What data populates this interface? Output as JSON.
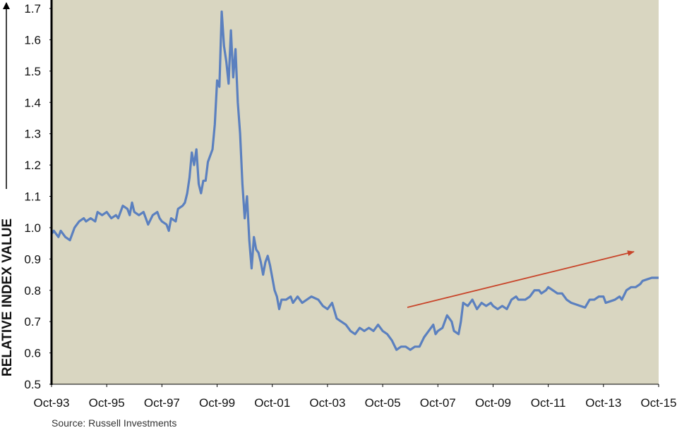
{
  "chart_data": {
    "type": "line",
    "y_label": "RELATIVE INDEX VALUE",
    "source": "Source: Russell Investments",
    "color": "#5b80bf",
    "background": "#d9d6c1",
    "xlim": [
      "Oct-93",
      "Oct-15"
    ],
    "xticks": [
      "Oct-93",
      "Oct-95",
      "Oct-97",
      "Oct-99",
      "Oct-01",
      "Oct-03",
      "Oct-05",
      "Oct-07",
      "Oct-09",
      "Oct-11",
      "Oct-13",
      "Oct-15"
    ],
    "ylim": [
      0.5,
      1.7
    ],
    "yticks": [
      0.5,
      0.6,
      0.7,
      0.8,
      0.9,
      {
        "value": 1,
        "label": "1.0"
      },
      1.1,
      1.2,
      1.3,
      1.4,
      1.5,
      1.6,
      1.7
    ],
    "x": [
      "Oct-93",
      "Nov-93",
      "Dec-93",
      "Jan-94",
      "Feb-94",
      "Apr-94",
      "Jun-94",
      "Aug-94",
      "Oct-94",
      "Dec-94",
      "Jan-95",
      "Mar-95",
      "May-95",
      "Jun-95",
      "Aug-95",
      "Oct-95",
      "Dec-95",
      "Feb-96",
      "Mar-96",
      "May-96",
      "Jul-96",
      "Aug-96",
      "Sep-96",
      "Oct-96",
      "Dec-96",
      "Feb-97",
      "Apr-97",
      "Jun-97",
      "Aug-97",
      "Sep-97",
      "Oct-97",
      "Dec-97",
      "Jan-98",
      "Feb-98",
      "Apr-98",
      "May-98",
      "Jul-98",
      "Aug-98",
      "Sep-98",
      "Oct-98",
      "Nov-98",
      "Dec-98",
      "Jan-99",
      "Feb-99",
      "Mar-99",
      "Apr-99",
      "May-99",
      "Jun-99",
      "Aug-99",
      "Sep-99",
      "Oct-99",
      "Nov-99",
      "Dec-99",
      "Jan-00",
      "Feb-00",
      "Mar-00",
      "Apr-00",
      "May-00",
      "Jun-00",
      "Jul-00",
      "Aug-00",
      "Sep-00",
      "Oct-00",
      "Nov-00",
      "Dec-00",
      "Jan-01",
      "Feb-01",
      "Mar-01",
      "Apr-01",
      "May-01",
      "Jun-01",
      "Jul-01",
      "Aug-01",
      "Sep-01",
      "Oct-01",
      "Nov-01",
      "Dec-01",
      "Jan-02",
      "Feb-02",
      "Apr-02",
      "Jun-02",
      "Jul-02",
      "Sep-02",
      "Nov-02",
      "Jan-03",
      "Mar-03",
      "Jun-03",
      "Aug-03",
      "Oct-03",
      "Dec-03",
      "Feb-04",
      "Apr-04",
      "Jun-04",
      "Aug-04",
      "Oct-04",
      "Dec-04",
      "Feb-05",
      "Apr-05",
      "Jun-05",
      "Aug-05",
      "Oct-05",
      "Dec-05",
      "Feb-06",
      "Apr-06",
      "Jun-06",
      "Aug-06",
      "Oct-06",
      "Dec-06",
      "Feb-07",
      "Apr-07",
      "Jun-07",
      "Aug-07",
      "Sep-07",
      "Oct-07",
      "Dec-07",
      "Feb-08",
      "Apr-08",
      "May-08",
      "Jul-08",
      "Aug-08",
      "Sep-08",
      "Nov-08",
      "Jan-09",
      "Mar-09",
      "May-09",
      "Jul-09",
      "Sep-09",
      "Oct-09",
      "Dec-09",
      "Feb-10",
      "Apr-10",
      "Jun-10",
      "Aug-10",
      "Sep-10",
      "Dec-10",
      "Feb-11",
      "Apr-11",
      "Jun-11",
      "Jul-11",
      "Sep-11",
      "Oct-11",
      "Dec-11",
      "Feb-12",
      "Apr-12",
      "Jun-12",
      "Aug-12",
      "Oct-12",
      "Dec-12",
      "Feb-13",
      "Apr-13",
      "Jun-13",
      "Aug-13",
      "Oct-13",
      "Nov-13",
      "Jan-14",
      "Mar-14",
      "May-14",
      "Jun-14",
      "Aug-14",
      "Oct-14",
      "Dec-14",
      "Feb-15",
      "Mar-15",
      "May-15",
      "Jul-15",
      "Oct-15"
    ],
    "values": [
      0.98,
      0.99,
      0.98,
      0.97,
      0.99,
      0.97,
      0.96,
      1.0,
      1.02,
      1.03,
      1.02,
      1.03,
      1.02,
      1.05,
      1.04,
      1.05,
      1.03,
      1.04,
      1.03,
      1.07,
      1.06,
      1.04,
      1.08,
      1.05,
      1.04,
      1.05,
      1.01,
      1.04,
      1.05,
      1.03,
      1.02,
      1.01,
      0.99,
      1.03,
      1.02,
      1.06,
      1.07,
      1.08,
      1.11,
      1.16,
      1.24,
      1.2,
      1.25,
      1.14,
      1.11,
      1.15,
      1.15,
      1.21,
      1.25,
      1.33,
      1.47,
      1.45,
      1.69,
      1.58,
      1.53,
      1.46,
      1.63,
      1.48,
      1.57,
      1.4,
      1.3,
      1.14,
      1.03,
      1.1,
      0.96,
      0.87,
      0.97,
      0.93,
      0.92,
      0.89,
      0.85,
      0.89,
      0.91,
      0.88,
      0.84,
      0.8,
      0.78,
      0.74,
      0.77,
      0.77,
      0.78,
      0.76,
      0.78,
      0.76,
      0.77,
      0.78,
      0.77,
      0.75,
      0.74,
      0.76,
      0.71,
      0.7,
      0.69,
      0.67,
      0.66,
      0.68,
      0.67,
      0.68,
      0.67,
      0.69,
      0.67,
      0.66,
      0.64,
      0.61,
      0.62,
      0.62,
      0.61,
      0.62,
      0.62,
      0.65,
      0.67,
      0.69,
      0.66,
      0.67,
      0.68,
      0.72,
      0.7,
      0.67,
      0.66,
      0.7,
      0.76,
      0.75,
      0.77,
      0.74,
      0.76,
      0.75,
      0.76,
      0.75,
      0.74,
      0.75,
      0.74,
      0.77,
      0.78,
      0.77,
      0.77,
      0.78,
      0.8,
      0.8,
      0.79,
      0.8,
      0.81,
      0.8,
      0.79,
      0.79,
      0.77,
      0.76,
      0.755,
      0.75,
      0.745,
      0.77,
      0.77,
      0.78,
      0.78,
      0.76,
      0.765,
      0.77,
      0.78,
      0.77,
      0.8,
      0.81,
      0.81,
      0.82,
      0.83,
      0.835,
      0.84,
      0.84
    ]
  }
}
